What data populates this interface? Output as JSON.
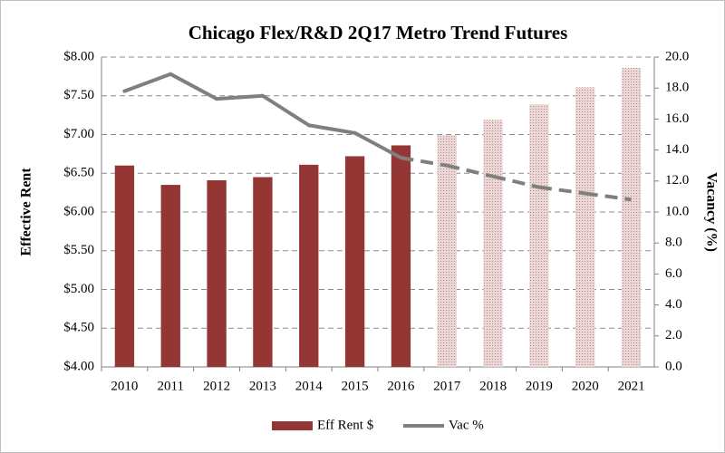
{
  "chart_data": {
    "type": "bar_line",
    "title": "Chicago Flex/R&D 2Q17 Metro Trend Futures",
    "y_label": "Effective Rent",
    "y2_label": "Vacancy (%)",
    "categories": [
      "2010",
      "2011",
      "2012",
      "2013",
      "2014",
      "2015",
      "2016",
      "2017",
      "2018",
      "2019",
      "2020",
      "2021"
    ],
    "series": [
      {
        "name": "Eff Rent $",
        "kind": "bar",
        "color": "#943634",
        "values": [
          6.6,
          6.35,
          6.41,
          6.45,
          6.61,
          6.72,
          6.86,
          6.99,
          7.19,
          7.39,
          7.61,
          7.86
        ],
        "styles": [
          "solid",
          "solid",
          "solid",
          "solid",
          "solid",
          "solid",
          "solid",
          "stippled",
          "stippled",
          "stippled",
          "stippled",
          "stippled"
        ]
      },
      {
        "name": "Vac %",
        "kind": "line",
        "color": "#7f7f7f",
        "axis": "y2",
        "values": [
          17.8,
          18.9,
          17.3,
          17.5,
          15.6,
          15.1,
          13.5,
          13.0,
          12.3,
          11.6,
          11.2,
          10.8
        ],
        "styles": [
          "solid",
          "solid",
          "solid",
          "solid",
          "solid",
          "solid",
          "solid",
          "dashed",
          "dashed",
          "dashed",
          "dashed",
          "dashed"
        ]
      }
    ],
    "ylim": [
      4,
      8
    ],
    "yticks": [
      {
        "value": 4,
        "label": "$4.00"
      },
      {
        "value": 4.5,
        "label": "$4.50"
      },
      {
        "value": 5,
        "label": "$5.00"
      },
      {
        "value": 5.5,
        "label": "$5.50"
      },
      {
        "value": 6,
        "label": "$6.00"
      },
      {
        "value": 6.5,
        "label": "$6.50"
      },
      {
        "value": 7,
        "label": "$7.00"
      },
      {
        "value": 7.5,
        "label": "$7.50"
      },
      {
        "value": 8,
        "label": "$8.00"
      }
    ],
    "y2lim": [
      0,
      20
    ],
    "y2ticks": [
      {
        "value": 0,
        "label": "0.0"
      },
      {
        "value": 2,
        "label": "2.0"
      },
      {
        "value": 4,
        "label": "4.0"
      },
      {
        "value": 6,
        "label": "6.0"
      },
      {
        "value": 8,
        "label": "8.0"
      },
      {
        "value": 10,
        "label": "10.0"
      },
      {
        "value": 12,
        "label": "12.0"
      },
      {
        "value": 14,
        "label": "14.0"
      },
      {
        "value": 16,
        "label": "16.0"
      },
      {
        "value": 18,
        "label": "18.0"
      },
      {
        "value": 20,
        "label": "20.0"
      }
    ],
    "grid": true,
    "legend": "bottom"
  }
}
